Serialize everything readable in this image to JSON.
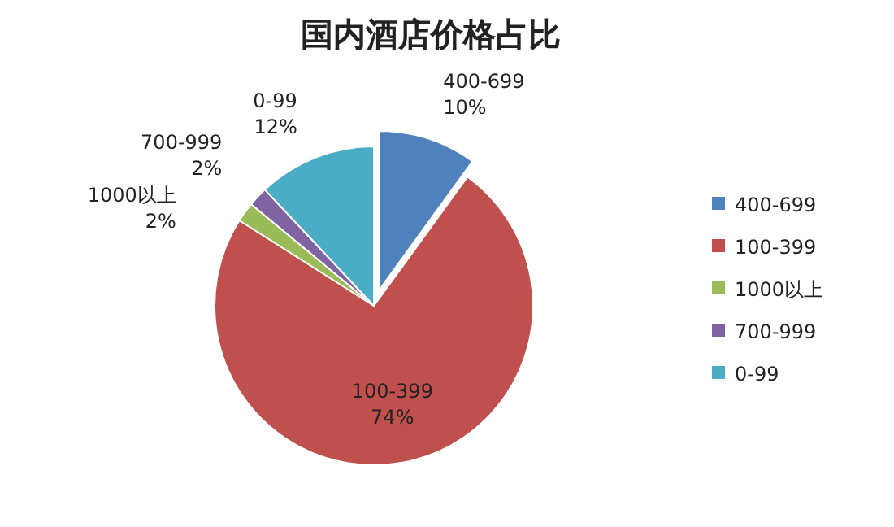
{
  "chart_data": {
    "type": "pie",
    "title": "国内酒店价格占比",
    "categories": [
      "400-699",
      "100-399",
      "1000以上",
      "700-999",
      "0-99"
    ],
    "values": [
      10,
      74,
      2,
      2,
      12
    ],
    "value_labels": [
      "10%",
      "74%",
      "2%",
      "2%",
      "12%"
    ],
    "colors": [
      "#4f81bd",
      "#c0504d",
      "#9bbb59",
      "#8064a2",
      "#4bacc6"
    ],
    "legend": "right"
  }
}
